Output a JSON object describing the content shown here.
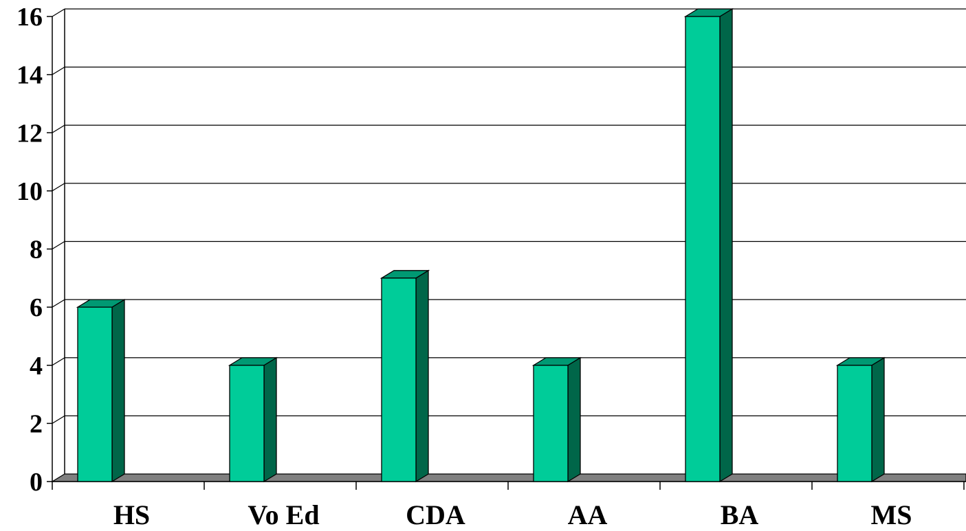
{
  "chart_data": {
    "type": "bar",
    "categories": [
      "HS",
      "Vo Ed",
      "CDA",
      "AA",
      "BA",
      "MS"
    ],
    "values": [
      6,
      4,
      7,
      4,
      16,
      4
    ],
    "yticks": [
      "0",
      "2",
      "4",
      "6",
      "8",
      "10",
      "12",
      "14",
      "16"
    ],
    "ylim": [
      0,
      16
    ],
    "title": "",
    "xlabel": "",
    "ylabel": "",
    "grid": true,
    "legend": "none",
    "style": "3d-column",
    "colors": {
      "bar_front": "#00CC99",
      "bar_top": "#009973",
      "bar_side": "#006649",
      "floor": "#808080",
      "grid": "#000000",
      "background": "#FFFFFF"
    }
  }
}
